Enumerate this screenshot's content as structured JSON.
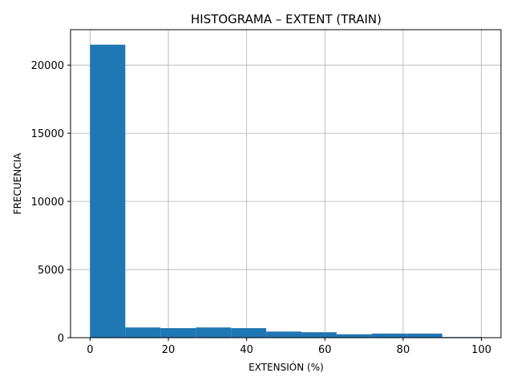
{
  "chart_data": {
    "type": "bar",
    "subtype": "histogram",
    "title": "HISTOGRAMA – EXTENT (TRAIN)",
    "xlabel": "EXTENSIÓN (%)",
    "ylabel": "FRECUENCIA",
    "bin_edges": [
      0,
      9,
      18,
      27,
      36,
      45,
      54,
      63,
      72,
      81,
      90,
      100
    ],
    "values": [
      21500,
      750,
      700,
      750,
      700,
      450,
      400,
      250,
      300,
      300,
      50
    ],
    "xlim": [
      -5,
      105
    ],
    "ylim": [
      0,
      22600
    ],
    "xticks": [
      0,
      20,
      40,
      60,
      80,
      100
    ],
    "yticks": [
      0,
      5000,
      10000,
      15000,
      20000
    ],
    "grid": true,
    "bar_color": "#1f77b4",
    "grid_color": "#b0b0b0"
  }
}
